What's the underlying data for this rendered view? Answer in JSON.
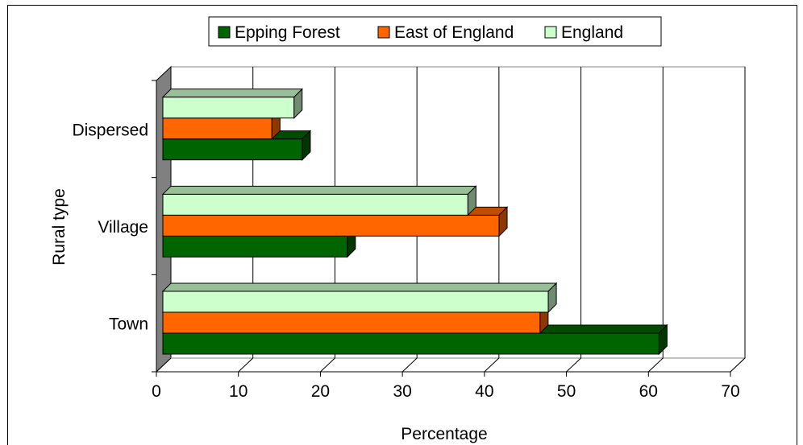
{
  "chart_data": {
    "type": "bar",
    "orientation": "horizontal",
    "categories": [
      "Town",
      "Village",
      "Dispersed"
    ],
    "series": [
      {
        "name": "Epping Forest",
        "color": "#006400",
        "values": [
          60.5,
          22.5,
          17
        ]
      },
      {
        "name": "East of England",
        "color": "#ff6600",
        "values": [
          46,
          41,
          13.3
        ]
      },
      {
        "name": "England",
        "color": "#ccffcc",
        "values": [
          47,
          37.2,
          16
        ]
      }
    ],
    "xlabel": "Percentage",
    "ylabel": "Rural type",
    "xlim": [
      0,
      70
    ],
    "xticks": [
      0,
      10,
      20,
      30,
      40,
      50,
      60,
      70
    ],
    "grid": true,
    "legend": "top"
  }
}
